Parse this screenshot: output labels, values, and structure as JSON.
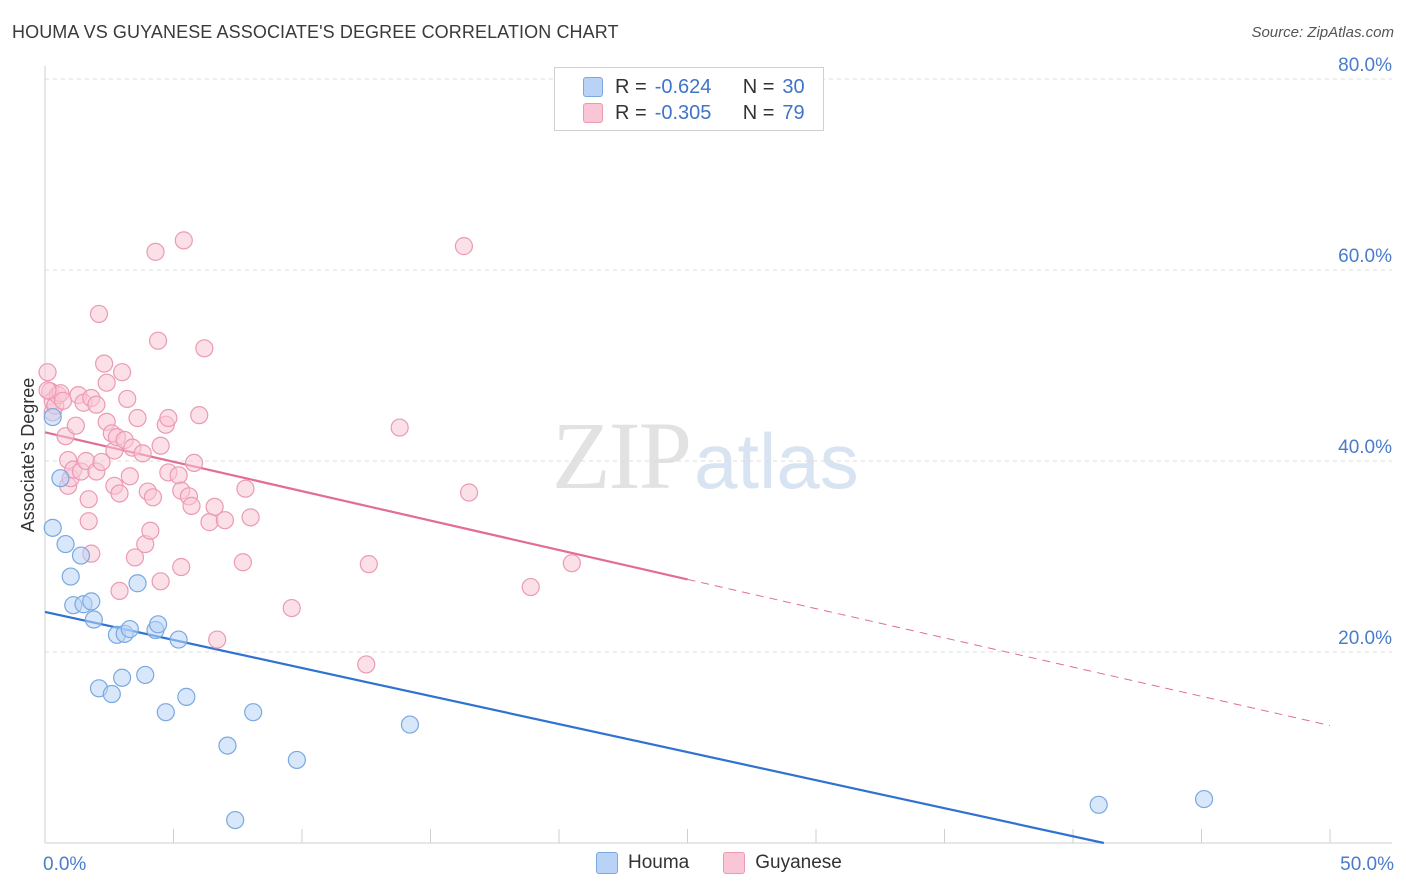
{
  "header": {
    "title": "HOUMA VS GUYANESE ASSOCIATE'S DEGREE CORRELATION CHART",
    "source": "Source: ZipAtlas.com"
  },
  "watermark": {
    "zip": "ZIP",
    "atlas": "atlas"
  },
  "legend": {
    "r_label": "R =",
    "n_label": "N =",
    "rows": [
      {
        "name": "Houma",
        "r": "-0.624",
        "n": "30",
        "fill": "#b8d3f5",
        "stroke": "#7aa8e0"
      },
      {
        "name": "Guyanese",
        "r": "-0.305",
        "n": "79",
        "fill": "#f9c6d6",
        "stroke": "#eb9ab3"
      }
    ]
  },
  "chart_data": {
    "type": "scatter",
    "title": "HOUMA VS GUYANESE ASSOCIATE'S DEGREE CORRELATION CHART",
    "xlabel": "",
    "ylabel": "Associate's Degree",
    "xlim": [
      0,
      50
    ],
    "ylim": [
      0,
      80
    ],
    "x_tick_labels": [
      "0.0%",
      "50.0%"
    ],
    "y_ticks": [
      20,
      40,
      60,
      80
    ],
    "y_tick_labels": [
      "20.0%",
      "40.0%",
      "60.0%",
      "80.0%"
    ],
    "grid": true,
    "legend_position": "top-center",
    "series": [
      {
        "name": "Houma",
        "color": "#7aa8e0",
        "fill": "#b8d3f5",
        "trend_color": "#2f72d2",
        "trend": {
          "x": [
            0,
            41.2
          ],
          "y": [
            24.2,
            0
          ]
        },
        "points": [
          {
            "x": 0.3,
            "y": 44.6
          },
          {
            "x": 0.3,
            "y": 33.0
          },
          {
            "x": 0.6,
            "y": 38.2
          },
          {
            "x": 0.8,
            "y": 31.3
          },
          {
            "x": 1.0,
            "y": 27.9
          },
          {
            "x": 1.1,
            "y": 24.9
          },
          {
            "x": 1.4,
            "y": 30.1
          },
          {
            "x": 1.5,
            "y": 25.0
          },
          {
            "x": 1.8,
            "y": 25.3
          },
          {
            "x": 1.9,
            "y": 23.4
          },
          {
            "x": 2.1,
            "y": 16.2
          },
          {
            "x": 2.6,
            "y": 15.6
          },
          {
            "x": 2.8,
            "y": 21.8
          },
          {
            "x": 3.0,
            "y": 17.3
          },
          {
            "x": 3.1,
            "y": 21.9
          },
          {
            "x": 3.3,
            "y": 22.4
          },
          {
            "x": 3.6,
            "y": 27.2
          },
          {
            "x": 3.9,
            "y": 17.6
          },
          {
            "x": 4.3,
            "y": 22.3
          },
          {
            "x": 4.4,
            "y": 22.9
          },
          {
            "x": 4.7,
            "y": 13.7
          },
          {
            "x": 5.2,
            "y": 21.3
          },
          {
            "x": 5.5,
            "y": 15.3
          },
          {
            "x": 7.1,
            "y": 10.2
          },
          {
            "x": 7.4,
            "y": 2.4
          },
          {
            "x": 8.1,
            "y": 13.7
          },
          {
            "x": 9.8,
            "y": 8.7
          },
          {
            "x": 14.2,
            "y": 12.4
          },
          {
            "x": 41.0,
            "y": 4.0
          },
          {
            "x": 45.1,
            "y": 4.6
          }
        ]
      },
      {
        "name": "Guyanese",
        "color": "#eb9ab3",
        "fill": "#f9c6d6",
        "trend_color": "#e26d96",
        "trend": {
          "x": [
            0,
            25.0
          ],
          "y": [
            43.0,
            27.6
          ]
        },
        "trend_dashed": {
          "x": [
            25.0,
            50.0
          ],
          "y": [
            27.6,
            12.3
          ]
        },
        "points": [
          {
            "x": 0.1,
            "y": 49.3
          },
          {
            "x": 0.2,
            "y": 47.3
          },
          {
            "x": 0.3,
            "y": 45.1
          },
          {
            "x": 0.3,
            "y": 46.3
          },
          {
            "x": 0.4,
            "y": 45.8
          },
          {
            "x": 0.5,
            "y": 46.9
          },
          {
            "x": 0.6,
            "y": 47.1
          },
          {
            "x": 0.7,
            "y": 46.3
          },
          {
            "x": 0.8,
            "y": 42.6
          },
          {
            "x": 0.9,
            "y": 40.1
          },
          {
            "x": 0.9,
            "y": 37.4
          },
          {
            "x": 1.0,
            "y": 38.2
          },
          {
            "x": 1.1,
            "y": 39.1
          },
          {
            "x": 1.2,
            "y": 43.7
          },
          {
            "x": 1.3,
            "y": 46.9
          },
          {
            "x": 1.4,
            "y": 38.9
          },
          {
            "x": 1.5,
            "y": 46.1
          },
          {
            "x": 1.6,
            "y": 40.0
          },
          {
            "x": 1.7,
            "y": 36.0
          },
          {
            "x": 1.7,
            "y": 33.7
          },
          {
            "x": 1.8,
            "y": 46.6
          },
          {
            "x": 1.8,
            "y": 30.3
          },
          {
            "x": 2.0,
            "y": 38.9
          },
          {
            "x": 2.0,
            "y": 45.9
          },
          {
            "x": 2.1,
            "y": 55.4
          },
          {
            "x": 2.2,
            "y": 39.9
          },
          {
            "x": 2.3,
            "y": 50.2
          },
          {
            "x": 2.4,
            "y": 48.2
          },
          {
            "x": 2.4,
            "y": 44.1
          },
          {
            "x": 2.6,
            "y": 42.9
          },
          {
            "x": 2.7,
            "y": 37.4
          },
          {
            "x": 2.7,
            "y": 41.1
          },
          {
            "x": 2.8,
            "y": 42.5
          },
          {
            "x": 2.9,
            "y": 36.6
          },
          {
            "x": 2.9,
            "y": 26.4
          },
          {
            "x": 3.0,
            "y": 49.3
          },
          {
            "x": 3.1,
            "y": 42.2
          },
          {
            "x": 3.2,
            "y": 46.5
          },
          {
            "x": 3.3,
            "y": 38.4
          },
          {
            "x": 3.4,
            "y": 41.4
          },
          {
            "x": 3.5,
            "y": 29.9
          },
          {
            "x": 3.6,
            "y": 44.5
          },
          {
            "x": 3.8,
            "y": 40.8
          },
          {
            "x": 3.9,
            "y": 31.3
          },
          {
            "x": 4.0,
            "y": 36.8
          },
          {
            "x": 4.1,
            "y": 32.7
          },
          {
            "x": 4.2,
            "y": 36.2
          },
          {
            "x": 4.3,
            "y": 61.9
          },
          {
            "x": 4.4,
            "y": 52.6
          },
          {
            "x": 4.5,
            "y": 41.6
          },
          {
            "x": 4.5,
            "y": 27.4
          },
          {
            "x": 4.7,
            "y": 43.8
          },
          {
            "x": 4.8,
            "y": 44.5
          },
          {
            "x": 4.8,
            "y": 38.8
          },
          {
            "x": 5.2,
            "y": 38.5
          },
          {
            "x": 5.3,
            "y": 28.9
          },
          {
            "x": 5.3,
            "y": 36.9
          },
          {
            "x": 5.4,
            "y": 63.1
          },
          {
            "x": 5.6,
            "y": 36.3
          },
          {
            "x": 5.7,
            "y": 35.3
          },
          {
            "x": 5.8,
            "y": 39.8
          },
          {
            "x": 6.0,
            "y": 44.8
          },
          {
            "x": 6.2,
            "y": 51.8
          },
          {
            "x": 6.4,
            "y": 33.6
          },
          {
            "x": 6.6,
            "y": 35.2
          },
          {
            "x": 6.7,
            "y": 21.3
          },
          {
            "x": 7.0,
            "y": 33.8
          },
          {
            "x": 7.7,
            "y": 29.4
          },
          {
            "x": 7.8,
            "y": 37.1
          },
          {
            "x": 8.0,
            "y": 34.1
          },
          {
            "x": 9.6,
            "y": 24.6
          },
          {
            "x": 12.5,
            "y": 18.7
          },
          {
            "x": 12.6,
            "y": 29.2
          },
          {
            "x": 13.8,
            "y": 43.5
          },
          {
            "x": 16.3,
            "y": 62.5
          },
          {
            "x": 16.5,
            "y": 36.7
          },
          {
            "x": 18.9,
            "y": 26.8
          },
          {
            "x": 20.5,
            "y": 29.3
          },
          {
            "x": 0.1,
            "y": 47.4
          }
        ]
      }
    ]
  }
}
